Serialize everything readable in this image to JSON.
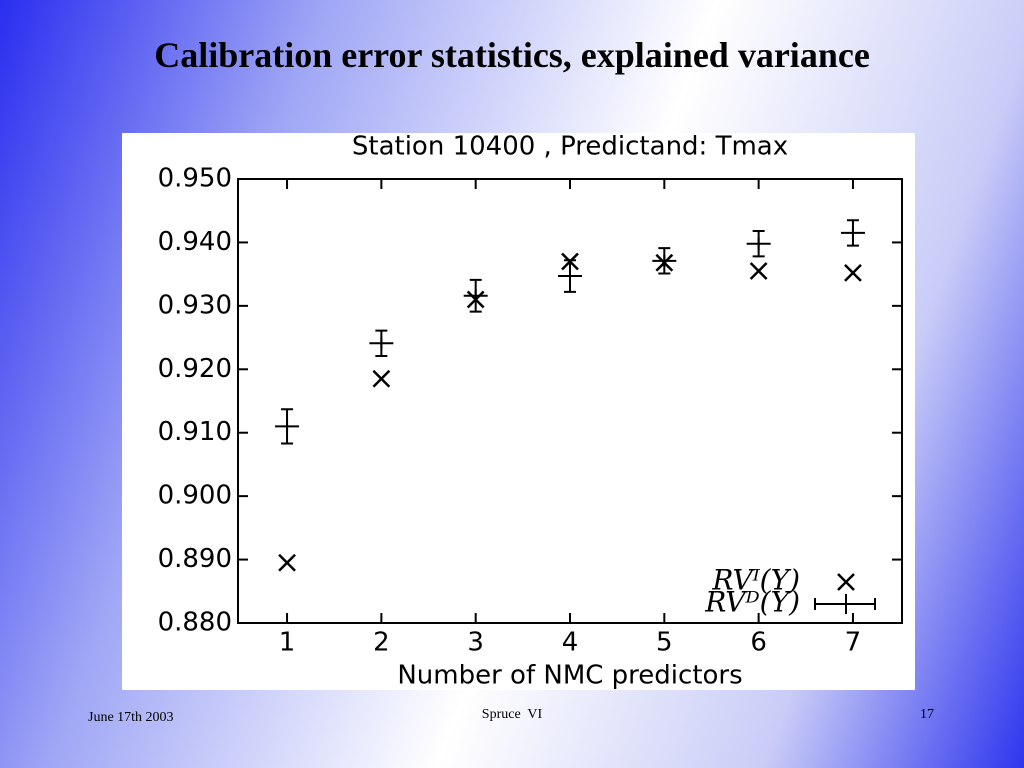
{
  "slide": {
    "title": "Calibration error statistics, explained variance",
    "footer_left": "June 17th 2003",
    "footer_center": "Spruce  VI",
    "page_number": "17"
  },
  "chart_data": {
    "type": "scatter",
    "title": "Station 10400 , Predictand: Tmax",
    "x_label": "Number of NMC predictors",
    "x": [
      1,
      2,
      3,
      4,
      5,
      6,
      7
    ],
    "series": [
      {
        "name": "RVᴵ(Y)",
        "marker": "x",
        "color": "#000000",
        "values": [
          0.8895,
          0.9185,
          0.931,
          0.937,
          0.9368,
          0.9355,
          0.9352
        ]
      },
      {
        "name": "RVᴰ(Y)",
        "marker": "+",
        "color": "#000000",
        "values": [
          0.911,
          0.9241,
          0.9316,
          0.9347,
          0.9371,
          0.9398,
          0.9415
        ],
        "errors": [
          0.0027,
          0.002,
          0.0025,
          0.0025,
          0.002,
          0.002,
          0.002
        ]
      }
    ],
    "xlim": [
      0.48,
      7.52
    ],
    "ylim": [
      0.88,
      0.95
    ],
    "xticks": [
      1,
      2,
      3,
      4,
      5,
      6,
      7
    ],
    "yticks": [
      {
        "value": 0.95,
        "label": "0.950"
      },
      {
        "value": 0.94,
        "label": "0.940"
      },
      {
        "value": 0.93,
        "label": "0.930"
      },
      {
        "value": 0.92,
        "label": "0.920"
      },
      {
        "value": 0.91,
        "label": "0.910"
      },
      {
        "value": 0.9,
        "label": "0.900"
      },
      {
        "value": 0.89,
        "label": "0.890"
      },
      {
        "value": 0.88,
        "label": "0.880"
      }
    ],
    "grid": false,
    "legend": "lower-right"
  }
}
